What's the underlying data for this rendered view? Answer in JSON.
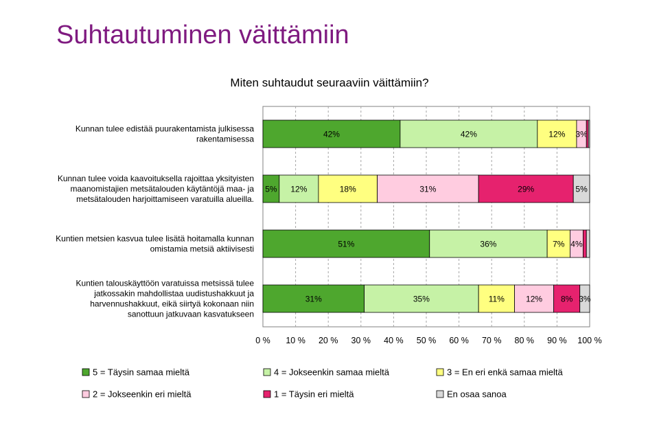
{
  "title": "Suhtautuminen väittämiin",
  "chart_data": {
    "type": "bar",
    "orientation": "horizontal-stacked-100",
    "title": "Miten suhtaudut seuraaviin väittämiin?",
    "categories": [
      [
        "Kunnan tulee edistää puurakentamista julkisessa",
        "rakentamisessa"
      ],
      [
        "Kunnan tulee voida kaavoituksella rajoittaa yksityisten",
        "maanomistajien metsätalouden käytäntöjä maa- ja",
        "metsätalouden harjoittamiseen varatuilla alueilla."
      ],
      [
        "Kuntien metsien kasvua tulee lisätä hoitamalla kunnan",
        "omistamia metsiä aktiivisesti"
      ],
      [
        "Kuntien talouskäyttöön varatuissa metsissä tulee",
        "jatkossakin mahdollistaa uudistushakkuut ja",
        "harvennushakkuut, eikä siirtyä kokonaan niin",
        "sanottuun jatkuvaan kasvatukseen"
      ]
    ],
    "series": [
      {
        "name": "5 = Täysin samaa mieltä",
        "color": "#4ea72e",
        "values": [
          42,
          5,
          51,
          31
        ],
        "labels": [
          "42%",
          "5%",
          "51%",
          "31%"
        ]
      },
      {
        "name": "4 = Jokseenkin samaa mieltä",
        "color": "#c6f2a6",
        "values": [
          42,
          12,
          36,
          35
        ],
        "labels": [
          "42%",
          "12%",
          "36%",
          "35%"
        ]
      },
      {
        "name": "3 = En eri enkä samaa mieltä",
        "color": "#ffff80",
        "values": [
          12,
          18,
          7,
          11
        ],
        "labels": [
          "12%",
          "18%",
          "7%",
          "11%"
        ]
      },
      {
        "name": "2 = Jokseenkin eri mieltä",
        "color": "#ffcce0",
        "values": [
          3,
          31,
          4,
          12
        ],
        "labels": [
          "3%",
          "31%",
          "4%",
          "12%"
        ]
      },
      {
        "name": "1 = Täysin eri mieltä",
        "color": "#e6226e",
        "values": [
          0.6,
          29,
          1,
          8
        ],
        "labels": [
          "",
          "29%",
          "",
          "8%"
        ]
      },
      {
        "name": "En osaa sanoa",
        "color": "#d9d9d9",
        "values": [
          0.4,
          5,
          1,
          3
        ],
        "labels": [
          "",
          "5%",
          "",
          "3%"
        ]
      }
    ],
    "xlim": [
      0,
      100
    ],
    "xticks": [
      "0 %",
      "10 %",
      "20 %",
      "30 %",
      "40 %",
      "50 %",
      "60 %",
      "70 %",
      "80 %",
      "90 %",
      "100 %"
    ],
    "grid": true,
    "legend": "bottom"
  }
}
